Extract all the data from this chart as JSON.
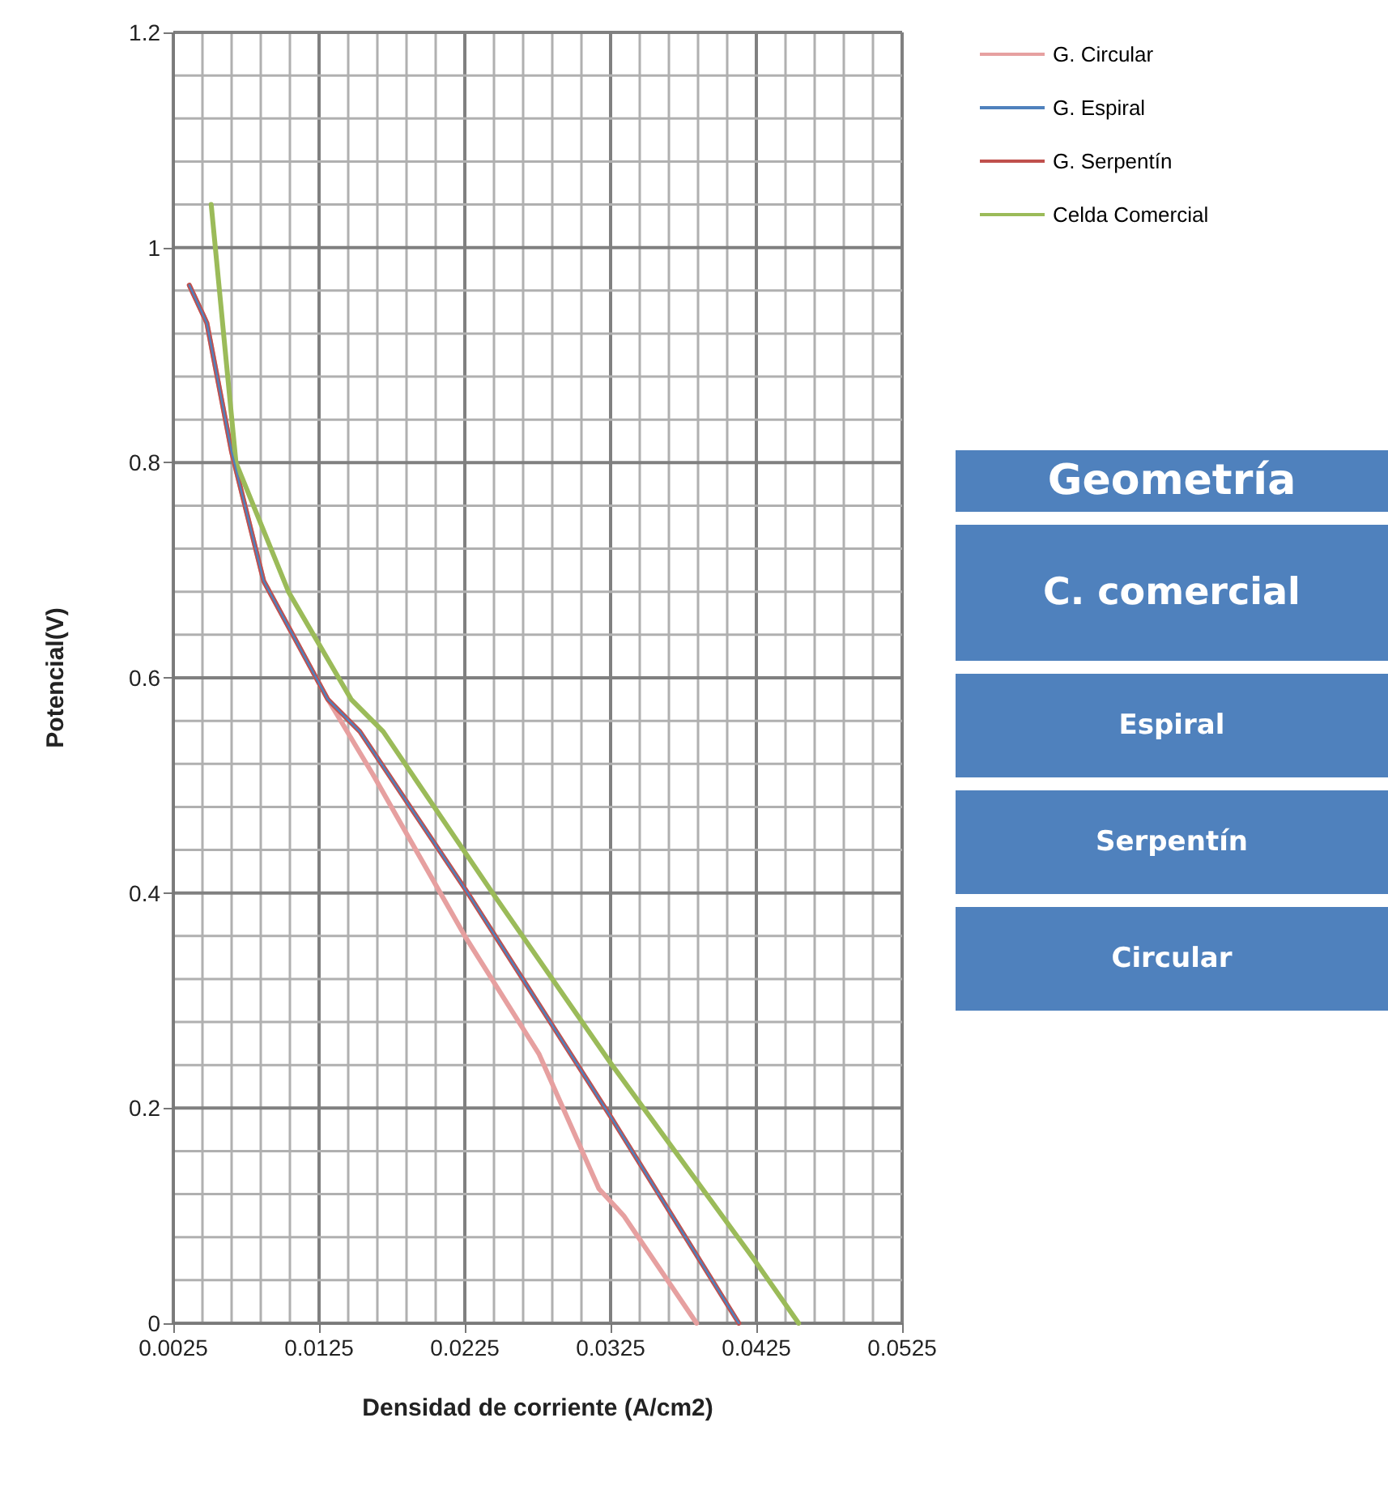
{
  "chart_data": [
    {
      "type": "line",
      "xlabel": "Densidad de corriente (A/cm2)",
      "ylabel": "Potencial(V)",
      "xlim": [
        0.0025,
        0.0525
      ],
      "xticks": [
        0.0025,
        0.0125,
        0.0225,
        0.0325,
        0.0425,
        0.0525
      ],
      "ylim": [
        0,
        1.2
      ],
      "yticks": [
        0,
        0.2,
        0.4,
        0.6,
        0.8,
        1,
        1.2
      ],
      "grid": true,
      "legend": "top right",
      "marker": "none",
      "line_style": "solid",
      "series": [
        {
          "name": "G. Circular",
          "color": "#e6a0a0",
          "x": [
            0.0036,
            0.0048,
            0.0065,
            0.0087,
            0.0131,
            0.0162,
            0.0225,
            0.0276,
            0.0317,
            0.0334,
            0.0384
          ],
          "values": [
            0.965,
            0.93,
            0.81,
            0.69,
            0.58,
            0.51,
            0.36,
            0.25,
            0.125,
            0.1,
            0
          ]
        },
        {
          "name": "G. Espiral",
          "color": "#4f81bd",
          "x": [
            0.0036,
            0.0048,
            0.0065,
            0.0087,
            0.0131,
            0.0153,
            0.0227,
            0.0326,
            0.0413
          ],
          "values": [
            0.965,
            0.93,
            0.81,
            0.69,
            0.58,
            0.55,
            0.4,
            0.19,
            0
          ]
        },
        {
          "name": "G. Serpentín",
          "color": "#c0504d",
          "x": [
            0.0036,
            0.0048,
            0.0065,
            0.0087,
            0.0131,
            0.0153,
            0.0227,
            0.0326,
            0.0413
          ],
          "values": [
            0.965,
            0.93,
            0.81,
            0.69,
            0.58,
            0.55,
            0.4,
            0.19,
            0
          ]
        },
        {
          "name": "Celda Comercial",
          "color": "#9bbb59",
          "x": [
            0.0051,
            0.0068,
            0.0104,
            0.0147,
            0.0169,
            0.0244,
            0.0326,
            0.0423,
            0.0454
          ],
          "values": [
            1.04,
            0.8,
            0.68,
            0.58,
            0.55,
            0.4,
            0.24,
            0.06,
            0
          ]
        }
      ]
    },
    {
      "type": "other",
      "annotations": [
        "Geometría",
        "C. comercial",
        "Espiral",
        "Serpentín",
        "Circular"
      ]
    }
  ]
}
